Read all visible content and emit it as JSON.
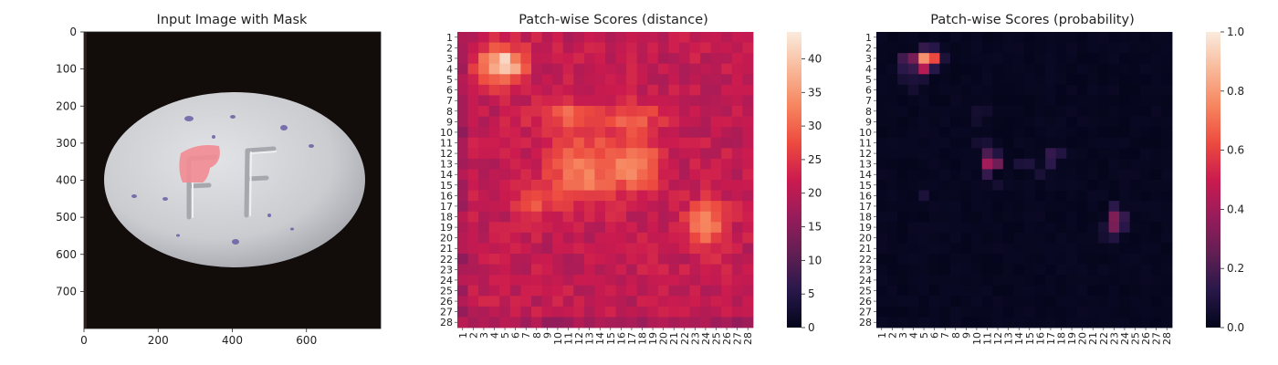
{
  "figure": {
    "panels": [
      {
        "title": "Input Image with Mask"
      },
      {
        "title": "Patch-wise Scores (distance)"
      },
      {
        "title": "Patch-wise Scores (probability)"
      }
    ]
  },
  "chart_data": [
    {
      "type": "heatmap",
      "title": "Input Image with Mask",
      "xlim": [
        0,
        800
      ],
      "ylim": [
        800,
        0
      ],
      "xticks": [
        0,
        200,
        400,
        600
      ],
      "yticks": [
        0,
        100,
        200,
        300,
        400,
        500,
        600,
        700
      ],
      "xlabel": "",
      "ylabel": "",
      "content": "photo of a white oval tablet embossed 'F' on a black background, with a pink mask region over the upper-left embossed mark",
      "colors": {
        "background": "#120c0b",
        "tablet": "#cfd0d3",
        "mask": "#f28c94",
        "speckle": "#5a4f9e"
      }
    },
    {
      "type": "heatmap",
      "title": "Patch-wise Scores (distance)",
      "rows": 28,
      "cols": 28,
      "xticks": [
        "1",
        "2",
        "3",
        "4",
        "5",
        "6",
        "7",
        "8",
        "9",
        "10",
        "11",
        "12",
        "13",
        "14",
        "15",
        "16",
        "17",
        "18",
        "19",
        "20",
        "21",
        "22",
        "23",
        "24",
        "25",
        "26",
        "27",
        "28"
      ],
      "yticks": [
        "1",
        "2",
        "3",
        "4",
        "5",
        "6",
        "7",
        "8",
        "9",
        "10",
        "11",
        "12",
        "13",
        "14",
        "15",
        "16",
        "17",
        "18",
        "19",
        "20",
        "21",
        "22",
        "23",
        "24",
        "25",
        "26",
        "27",
        "28"
      ],
      "colorbar": {
        "min": 0,
        "max": 44,
        "ticks": [
          0,
          5,
          10,
          15,
          20,
          25,
          30,
          35,
          40
        ]
      },
      "colormap": "rocket",
      "base_value": 21,
      "hotspots": [
        {
          "row": 3.6,
          "col": 4.8,
          "peak": 22,
          "sigma_r": 1.2,
          "sigma_c": 1.4
        },
        {
          "row": 13.5,
          "col": 12.5,
          "peak": 12,
          "sigma_r": 2.2,
          "sigma_c": 2.2
        },
        {
          "row": 13.0,
          "col": 17.5,
          "peak": 11,
          "sigma_r": 1.8,
          "sigma_c": 1.6
        },
        {
          "row": 8.5,
          "col": 11.0,
          "peak": 8,
          "sigma_r": 1.0,
          "sigma_c": 2.2
        },
        {
          "row": 8.5,
          "col": 17.0,
          "peak": 7,
          "sigma_r": 1.0,
          "sigma_c": 2.2
        },
        {
          "row": 18.8,
          "col": 24.0,
          "peak": 13,
          "sigma_r": 1.5,
          "sigma_c": 1.3
        },
        {
          "row": 16.5,
          "col": 8.0,
          "peak": 6,
          "sigma_r": 1.0,
          "sigma_c": 1.5
        }
      ]
    },
    {
      "type": "heatmap",
      "title": "Patch-wise Scores (probability)",
      "rows": 28,
      "cols": 28,
      "xticks": [
        "1",
        "2",
        "3",
        "4",
        "5",
        "6",
        "7",
        "8",
        "9",
        "10",
        "11",
        "12",
        "13",
        "14",
        "15",
        "16",
        "17",
        "18",
        "19",
        "20",
        "21",
        "22",
        "23",
        "24",
        "25",
        "26",
        "27",
        "28"
      ],
      "yticks": [
        "1",
        "2",
        "3",
        "4",
        "5",
        "6",
        "7",
        "8",
        "9",
        "10",
        "11",
        "12",
        "13",
        "14",
        "15",
        "16",
        "17",
        "18",
        "19",
        "20",
        "21",
        "22",
        "23",
        "24",
        "25",
        "26",
        "27",
        "28"
      ],
      "colorbar": {
        "min": 0.0,
        "max": 1.0,
        "ticks": [
          "0.0",
          "0.2",
          "0.4",
          "0.6",
          "0.8",
          "1.0"
        ]
      },
      "colormap": "rocket",
      "cells": [
        {
          "row": 3,
          "col": 5,
          "value": 0.78
        },
        {
          "row": 3,
          "col": 6,
          "value": 0.62
        },
        {
          "row": 4,
          "col": 5,
          "value": 0.45
        },
        {
          "row": 3,
          "col": 4,
          "value": 0.3
        },
        {
          "row": 2,
          "col": 5,
          "value": 0.15
        },
        {
          "row": 2,
          "col": 6,
          "value": 0.12
        },
        {
          "row": 3,
          "col": 3,
          "value": 0.18
        },
        {
          "row": 4,
          "col": 4,
          "value": 0.16
        },
        {
          "row": 4,
          "col": 3,
          "value": 0.13
        },
        {
          "row": 4,
          "col": 6,
          "value": 0.12
        },
        {
          "row": 3,
          "col": 7,
          "value": 0.08
        },
        {
          "row": 5,
          "col": 4,
          "value": 0.08
        },
        {
          "row": 5,
          "col": 3,
          "value": 0.07
        },
        {
          "row": 5,
          "col": 5,
          "value": 0.07
        },
        {
          "row": 6,
          "col": 4,
          "value": 0.06
        },
        {
          "row": 13,
          "col": 11,
          "value": 0.4
        },
        {
          "row": 13,
          "col": 12,
          "value": 0.28
        },
        {
          "row": 12,
          "col": 11,
          "value": 0.2
        },
        {
          "row": 14,
          "col": 11,
          "value": 0.15
        },
        {
          "row": 12,
          "col": 12,
          "value": 0.1
        },
        {
          "row": 12,
          "col": 17,
          "value": 0.15
        },
        {
          "row": 13,
          "col": 17,
          "value": 0.13
        },
        {
          "row": 12,
          "col": 18,
          "value": 0.1
        },
        {
          "row": 13,
          "col": 15,
          "value": 0.09
        },
        {
          "row": 13,
          "col": 14,
          "value": 0.08
        },
        {
          "row": 11,
          "col": 10,
          "value": 0.06
        },
        {
          "row": 11,
          "col": 11,
          "value": 0.07
        },
        {
          "row": 8,
          "col": 10,
          "value": 0.06
        },
        {
          "row": 9,
          "col": 10,
          "value": 0.05
        },
        {
          "row": 8,
          "col": 11,
          "value": 0.05
        },
        {
          "row": 14,
          "col": 16,
          "value": 0.07
        },
        {
          "row": 15,
          "col": 12,
          "value": 0.06
        },
        {
          "row": 16,
          "col": 5,
          "value": 0.08
        },
        {
          "row": 18,
          "col": 23,
          "value": 0.32
        },
        {
          "row": 19,
          "col": 23,
          "value": 0.3
        },
        {
          "row": 18,
          "col": 24,
          "value": 0.15
        },
        {
          "row": 17,
          "col": 23,
          "value": 0.13
        },
        {
          "row": 20,
          "col": 23,
          "value": 0.1
        },
        {
          "row": 19,
          "col": 24,
          "value": 0.12
        },
        {
          "row": 19,
          "col": 22,
          "value": 0.07
        },
        {
          "row": 20,
          "col": 22,
          "value": 0.06
        }
      ]
    }
  ]
}
